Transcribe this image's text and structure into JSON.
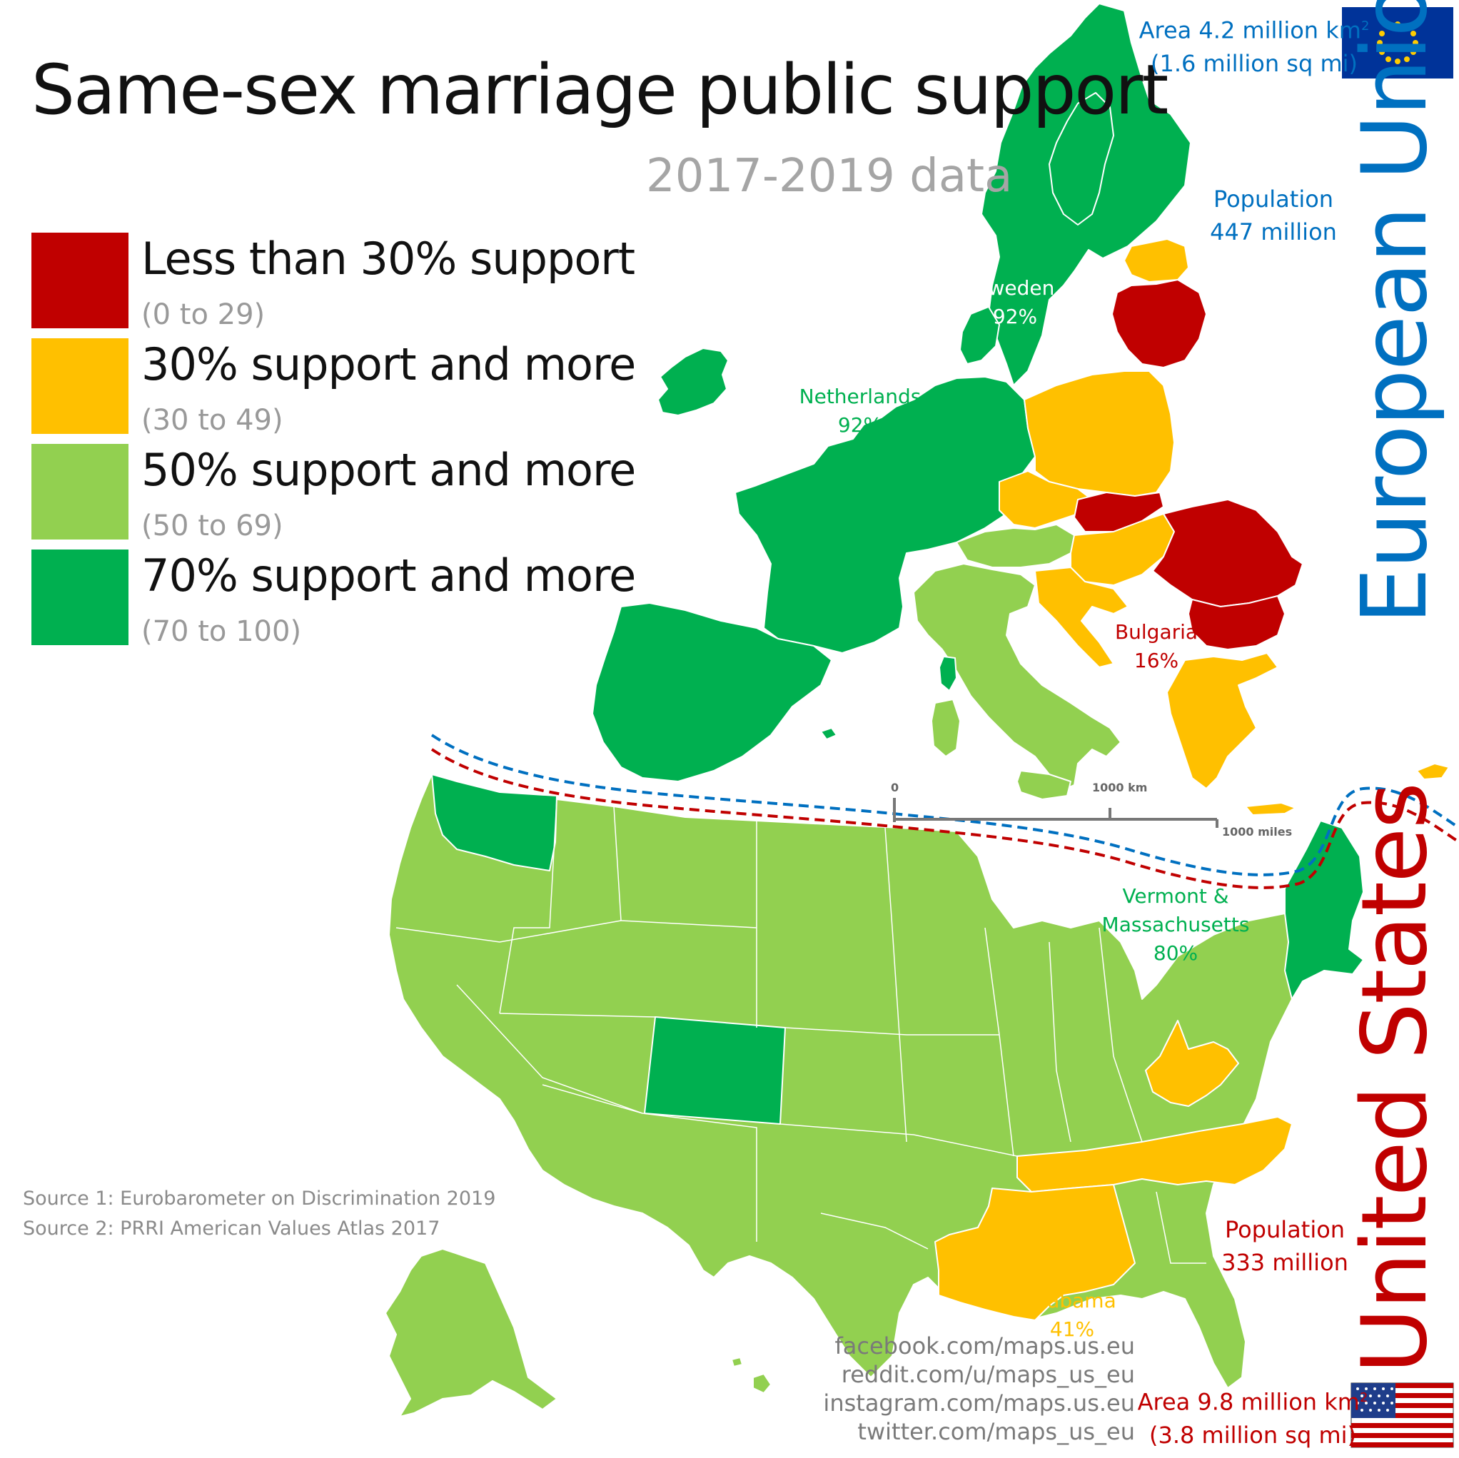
{
  "header": {
    "title": "Same-sex marriage public support",
    "subtitle": "2017-2019 data"
  },
  "legend": [
    {
      "label": "Less than 30% support",
      "range": "(0 to 29)",
      "color": "#c00000"
    },
    {
      "label": "30% support and more",
      "range": "(30 to 49)",
      "color": "#ffc000"
    },
    {
      "label": "50% support and more",
      "range": "(50 to 69)",
      "color": "#92d050"
    },
    {
      "label": "70% support and more",
      "range": "(70 to 100)",
      "color": "#00b050"
    }
  ],
  "region_labels": {
    "eu": "European Union",
    "us": "United States"
  },
  "eu_info": {
    "area_line1": "Area 4.2 million km",
    "area_sup": "2",
    "area_line2": "(1.6 million sq mi)",
    "population_label": "Population",
    "population_value": "447 million"
  },
  "us_info": {
    "area_line1": "Area 9.8 million km",
    "area_sup": "2",
    "area_line2": "(3.8 million sq mi)",
    "population_label": "Population",
    "population_value": "333 million"
  },
  "map_labels": {
    "sweden_name": "Sweden",
    "sweden_value": "92%",
    "netherlands_name": "Netherlands",
    "netherlands_value": "92%",
    "bulgaria_name": "Bulgaria",
    "bulgaria_value": "16%",
    "vermont_line1": "Vermont &",
    "vermont_line2": "Massachusetts",
    "vermont_value": "80%",
    "alabama_name": "Alabama",
    "alabama_value": "41%"
  },
  "scale_bar": {
    "zero": "0",
    "km": "1000 km",
    "miles": "1000 miles"
  },
  "sources": [
    "Source 1: Eurobarometer on Discrimination 2019",
    "Source 2: PRRI American Values Atlas 2017"
  ],
  "social": [
    "facebook.com/maps.us.eu",
    "reddit.com/u/maps_us_eu",
    "instagram.com/maps.us.eu",
    "twitter.com/maps_us_eu"
  ],
  "colors": {
    "red": "#c00000",
    "orange": "#ffc000",
    "light_green": "#92d050",
    "dark_green": "#00b050",
    "eu_blue": "#0070c0",
    "us_red": "#c00000",
    "flag_blue": "#003399",
    "flag_gold": "#ffcc00"
  },
  "icons": {
    "eu_flag": "eu-flag-icon",
    "us_flag": "us-flag-icon"
  }
}
